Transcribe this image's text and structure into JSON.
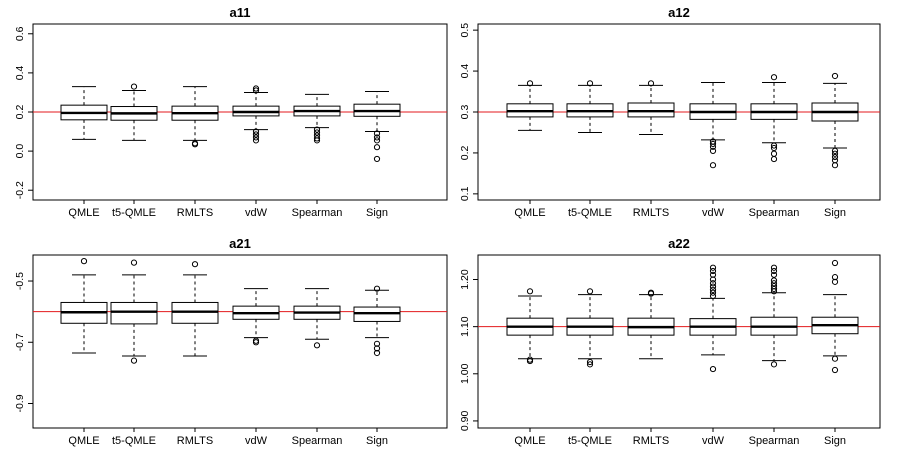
{
  "chart_data": [
    {
      "type": "boxplot",
      "title": "a11",
      "categories": [
        "QMLE",
        "t5-QMLE",
        "RMLTS",
        "vdW",
        "Spearman",
        "Sign"
      ],
      "ylim": [
        -0.25,
        0.65
      ],
      "yticks": [
        -0.2,
        0.0,
        0.2,
        0.4,
        0.6
      ],
      "ytick_labels": [
        "-0.2",
        "0.0",
        "0.2",
        "0.4",
        "0.6"
      ],
      "reference_line": 0.2,
      "reference_color": "#e31a1c",
      "boxes": [
        {
          "lower": 0.06,
          "q1": 0.16,
          "median": 0.195,
          "q3": 0.235,
          "upper": 0.33,
          "outliers": []
        },
        {
          "lower": 0.055,
          "q1": 0.158,
          "median": 0.193,
          "q3": 0.228,
          "upper": 0.31,
          "outliers": [
            0.33
          ]
        },
        {
          "lower": 0.055,
          "q1": 0.158,
          "median": 0.194,
          "q3": 0.23,
          "upper": 0.33,
          "outliers": [
            0.04,
            0.035
          ]
        },
        {
          "lower": 0.11,
          "q1": 0.18,
          "median": 0.2,
          "q3": 0.23,
          "upper": 0.3,
          "outliers": [
            0.31,
            0.32,
            0.1,
            0.085,
            0.07,
            0.055
          ]
        },
        {
          "lower": 0.12,
          "q1": 0.18,
          "median": 0.205,
          "q3": 0.23,
          "upper": 0.29,
          "outliers": [
            0.11,
            0.095,
            0.08,
            0.065,
            0.055
          ]
        },
        {
          "lower": 0.1,
          "q1": 0.178,
          "median": 0.205,
          "q3": 0.24,
          "upper": 0.305,
          "outliers": [
            0.09,
            0.07,
            0.055,
            0.02,
            -0.04
          ]
        }
      ]
    },
    {
      "type": "boxplot",
      "title": "a12",
      "categories": [
        "QMLE",
        "t5-QMLE",
        "RMLTS",
        "vdW",
        "Spearman",
        "Sign"
      ],
      "ylim": [
        0.085,
        0.515
      ],
      "yticks": [
        0.1,
        0.2,
        0.3,
        0.4,
        0.5
      ],
      "ytick_labels": [
        "0.1",
        "0.2",
        "0.3",
        "0.4",
        "0.5"
      ],
      "reference_line": 0.3,
      "reference_color": "#e31a1c",
      "boxes": [
        {
          "lower": 0.255,
          "q1": 0.288,
          "median": 0.302,
          "q3": 0.32,
          "upper": 0.365,
          "outliers": [
            0.37
          ]
        },
        {
          "lower": 0.25,
          "q1": 0.288,
          "median": 0.302,
          "q3": 0.32,
          "upper": 0.365,
          "outliers": [
            0.37
          ]
        },
        {
          "lower": 0.245,
          "q1": 0.288,
          "median": 0.302,
          "q3": 0.322,
          "upper": 0.365,
          "outliers": [
            0.37
          ]
        },
        {
          "lower": 0.232,
          "q1": 0.282,
          "median": 0.3,
          "q3": 0.32,
          "upper": 0.372,
          "outliers": [
            0.228,
            0.222,
            0.215,
            0.205,
            0.17
          ]
        },
        {
          "lower": 0.225,
          "q1": 0.282,
          "median": 0.3,
          "q3": 0.32,
          "upper": 0.372,
          "outliers": [
            0.385,
            0.218,
            0.212,
            0.198,
            0.185
          ]
        },
        {
          "lower": 0.212,
          "q1": 0.278,
          "median": 0.3,
          "q3": 0.322,
          "upper": 0.37,
          "outliers": [
            0.388,
            0.205,
            0.198,
            0.19,
            0.182,
            0.17
          ]
        }
      ]
    },
    {
      "type": "boxplot",
      "title": "a21",
      "categories": [
        "QMLE",
        "t5-QMLE",
        "RMLTS",
        "vdW",
        "Spearman",
        "Sign"
      ],
      "ylim": [
        -0.98,
        -0.415
      ],
      "yticks": [
        -0.9,
        -0.7,
        -0.5
      ],
      "ytick_labels": [
        "-0.9",
        "-0.7",
        "-0.5"
      ],
      "reference_line": -0.6,
      "reference_color": "#e31a1c",
      "boxes": [
        {
          "lower": -0.735,
          "q1": -0.638,
          "median": -0.602,
          "q3": -0.57,
          "upper": -0.48,
          "outliers": [
            -0.435
          ]
        },
        {
          "lower": -0.745,
          "q1": -0.64,
          "median": -0.6,
          "q3": -0.57,
          "upper": -0.48,
          "outliers": [
            -0.44,
            -0.76
          ]
        },
        {
          "lower": -0.745,
          "q1": -0.638,
          "median": -0.6,
          "q3": -0.57,
          "upper": -0.48,
          "outliers": [
            -0.445
          ]
        },
        {
          "lower": -0.685,
          "q1": -0.625,
          "median": -0.605,
          "q3": -0.582,
          "upper": -0.525,
          "outliers": [
            -0.695,
            -0.7
          ]
        },
        {
          "lower": -0.69,
          "q1": -0.625,
          "median": -0.603,
          "q3": -0.582,
          "upper": -0.525,
          "outliers": [
            -0.71
          ]
        },
        {
          "lower": -0.685,
          "q1": -0.632,
          "median": -0.605,
          "q3": -0.585,
          "upper": -0.53,
          "outliers": [
            -0.525,
            -0.705,
            -0.72,
            -0.735
          ]
        }
      ]
    },
    {
      "type": "boxplot",
      "title": "a22",
      "categories": [
        "QMLE",
        "t5-QMLE",
        "RMLTS",
        "vdW",
        "Spearman",
        "Sign"
      ],
      "ylim": [
        0.885,
        1.252
      ],
      "yticks": [
        0.9,
        1.0,
        1.1,
        1.2
      ],
      "ytick_labels": [
        "0.90",
        "1.00",
        "1.10",
        "1.20"
      ],
      "reference_line": 1.1,
      "reference_color": "#e31a1c",
      "boxes": [
        {
          "lower": 1.032,
          "q1": 1.082,
          "median": 1.1,
          "q3": 1.118,
          "upper": 1.165,
          "outliers": [
            1.175,
            1.03,
            1.027
          ]
        },
        {
          "lower": 1.032,
          "q1": 1.082,
          "median": 1.1,
          "q3": 1.118,
          "upper": 1.168,
          "outliers": [
            1.175,
            1.025,
            1.02
          ]
        },
        {
          "lower": 1.032,
          "q1": 1.082,
          "median": 1.099,
          "q3": 1.118,
          "upper": 1.168,
          "outliers": [
            1.17,
            1.172
          ]
        },
        {
          "lower": 1.04,
          "q1": 1.082,
          "median": 1.1,
          "q3": 1.117,
          "upper": 1.16,
          "outliers": [
            1.165,
            1.172,
            1.178,
            1.185,
            1.192,
            1.2,
            1.21,
            1.218,
            1.225,
            1.01
          ]
        },
        {
          "lower": 1.028,
          "q1": 1.082,
          "median": 1.1,
          "q3": 1.12,
          "upper": 1.172,
          "outliers": [
            1.175,
            1.18,
            1.186,
            1.192,
            1.198,
            1.21,
            1.218,
            1.225,
            1.02
          ]
        },
        {
          "lower": 1.038,
          "q1": 1.085,
          "median": 1.103,
          "q3": 1.12,
          "upper": 1.168,
          "outliers": [
            1.195,
            1.205,
            1.235,
            1.032,
            1.008
          ]
        }
      ]
    }
  ]
}
